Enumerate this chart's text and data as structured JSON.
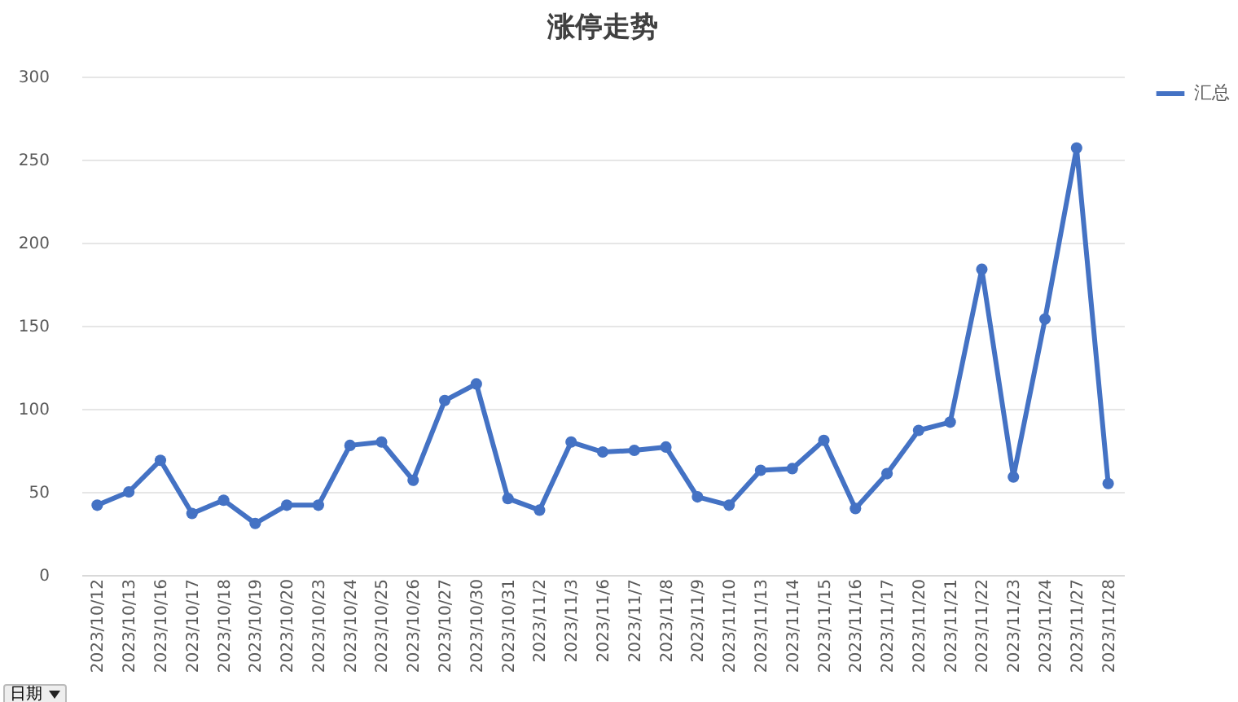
{
  "chart_data": {
    "type": "line",
    "title": "涨停走势",
    "categories": [
      "2023/10/12",
      "2023/10/13",
      "2023/10/16",
      "2023/10/17",
      "2023/10/18",
      "2023/10/19",
      "2023/10/20",
      "2023/10/23",
      "2023/10/24",
      "2023/10/25",
      "2023/10/26",
      "2023/10/27",
      "2023/10/30",
      "2023/10/31",
      "2023/11/2",
      "2023/11/3",
      "2023/11/6",
      "2023/11/7",
      "2023/11/8",
      "2023/11/9",
      "2023/11/10",
      "2023/11/13",
      "2023/11/14",
      "2023/11/15",
      "2023/11/16",
      "2023/11/17",
      "2023/11/20",
      "2023/11/21",
      "2023/11/22",
      "2023/11/23",
      "2023/11/24",
      "2023/11/27",
      "2023/11/28"
    ],
    "series": [
      {
        "name": "汇总",
        "color": "#4472c4",
        "values": [
          42,
          50,
          69,
          37,
          45,
          31,
          42,
          42,
          78,
          80,
          57,
          105,
          115,
          46,
          39,
          80,
          74,
          75,
          77,
          47,
          42,
          63,
          64,
          81,
          40,
          61,
          87,
          92,
          184,
          59,
          154,
          257,
          55
        ]
      }
    ],
    "ylim": [
      0,
      300
    ],
    "yticks": [
      0,
      50,
      100,
      150,
      200,
      250,
      300
    ],
    "grid": "y",
    "legend": "right",
    "marker": "circle",
    "line_style": "solid",
    "annotations": [
      "日期"
    ]
  }
}
